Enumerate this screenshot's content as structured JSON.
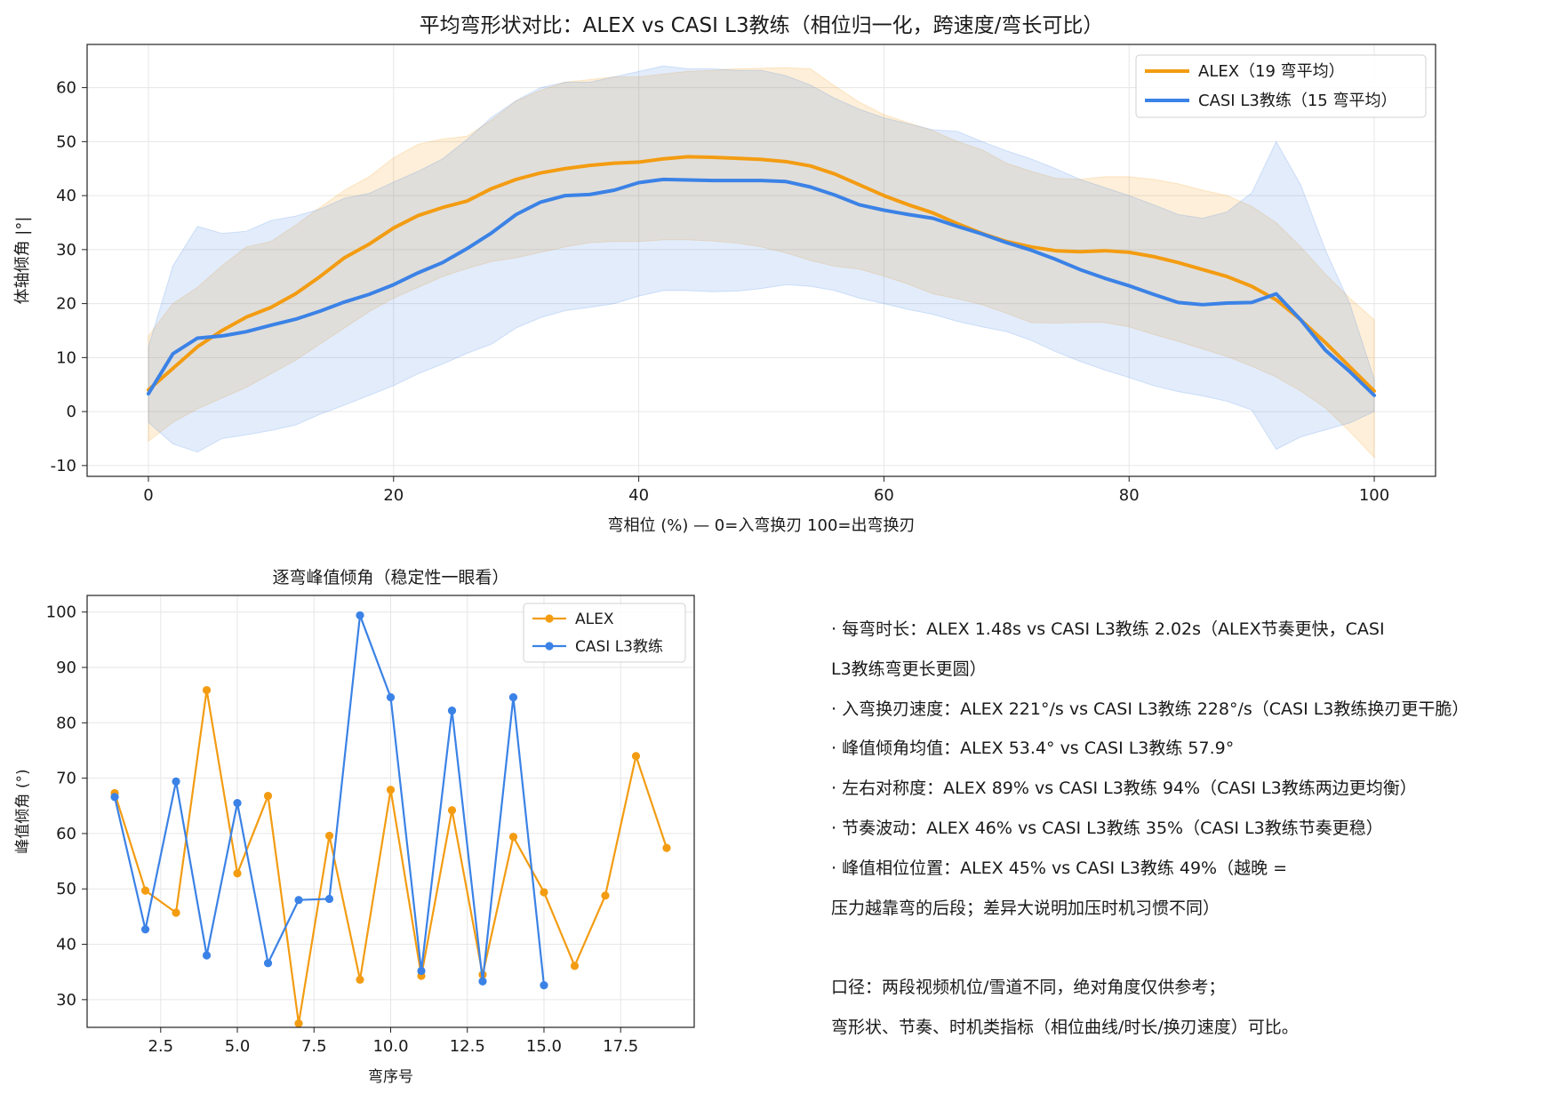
{
  "chart_data": [
    {
      "type": "line",
      "title": "平均弯形状对比：ALEX vs CASI L3教练（相位归一化，跨速度/弯长可比）",
      "xlabel": "弯相位 (%)  —  0=入弯换刃  100=出弯换刃",
      "ylabel": "体轴倾角 |°|",
      "xlim": [
        -5,
        105
      ],
      "ylim": [
        -12,
        68
      ],
      "xticks": [
        0,
        20,
        40,
        60,
        80,
        100
      ],
      "yticks": [
        -10,
        0,
        10,
        20,
        30,
        40,
        50,
        60
      ],
      "grid": true,
      "legend": "top-right",
      "x": [
        0,
        2,
        4,
        6,
        8,
        10,
        12,
        14,
        16,
        18,
        20,
        22,
        24,
        26,
        28,
        30,
        32,
        34,
        36,
        38,
        40,
        42,
        44,
        46,
        48,
        50,
        52,
        54,
        56,
        58,
        60,
        62,
        64,
        66,
        68,
        70,
        72,
        74,
        76,
        78,
        80,
        82,
        84,
        86,
        88,
        90,
        92,
        94,
        96,
        98,
        100
      ],
      "series": [
        {
          "name": "ALEX（19 弯平均）",
          "color": "#f39c12",
          "values": [
            4,
            8,
            12,
            15,
            17.5,
            19.3,
            21.8,
            25,
            28.5,
            31,
            34,
            36.3,
            37.8,
            39,
            41.3,
            43,
            44.2,
            45,
            45.6,
            46,
            46.2,
            46.8,
            47.2,
            47.1,
            46.9,
            46.7,
            46.3,
            45.5,
            44,
            42,
            40,
            38.3,
            36.8,
            34.8,
            33,
            31.5,
            30.5,
            29.8,
            29.6,
            29.8,
            29.5,
            28.7,
            27.6,
            26.3,
            25,
            23.2,
            20.7,
            17,
            12.8,
            8.3,
            3.8
          ],
          "band_upper": [
            14,
            20,
            23,
            27,
            30.5,
            31.5,
            34.5,
            37.8,
            41,
            43.5,
            47,
            49.5,
            50.5,
            51,
            54,
            57.5,
            59.5,
            61,
            61.5,
            62,
            62,
            62.5,
            63,
            63.2,
            63.5,
            63.6,
            63.7,
            63.5,
            60.3,
            57.3,
            55,
            53.5,
            52,
            50,
            48.5,
            46,
            44.5,
            43.2,
            43,
            43.5,
            43.5,
            43,
            42.2,
            41,
            40,
            38,
            35,
            30.5,
            25.5,
            21,
            17
          ],
          "band_lower": [
            -5.5,
            -2,
            0.5,
            2.5,
            4.5,
            7,
            9.5,
            12.5,
            15.5,
            18.5,
            21,
            23,
            25,
            26.5,
            27.8,
            28.5,
            29.5,
            30.5,
            31.3,
            31.5,
            31.5,
            31.8,
            31.8,
            31.6,
            31.2,
            30.5,
            29.4,
            28,
            26.9,
            26.4,
            25.1,
            23.6,
            21.8,
            20.9,
            19.8,
            18.2,
            16.5,
            16.4,
            16.5,
            16.5,
            15.7,
            14.3,
            13,
            11.6,
            10.2,
            8.4,
            6.4,
            3.8,
            0.7,
            -3.7,
            -8.5
          ]
        },
        {
          "name": "CASI L3教练（15 弯平均）",
          "color": "#3b82e6",
          "values": [
            3.3,
            10.7,
            13.6,
            14,
            14.8,
            16,
            17.1,
            18.6,
            20.3,
            21.7,
            23.5,
            25.7,
            27.6,
            30.2,
            33.1,
            36.5,
            38.8,
            40,
            40.2,
            41,
            42.4,
            43,
            42.9,
            42.8,
            42.8,
            42.8,
            42.6,
            41.6,
            40.1,
            38.3,
            37.3,
            36.5,
            35.8,
            34.3,
            32.9,
            31.3,
            29.9,
            28.2,
            26.3,
            24.7,
            23.3,
            21.7,
            20.2,
            19.8,
            20.1,
            20.2,
            21.8,
            17,
            11.4,
            7.4,
            3
          ],
          "band_upper": [
            12,
            27,
            34.3,
            33,
            33.4,
            35.4,
            36.2,
            37.5,
            39.5,
            40.4,
            42.5,
            44.5,
            46.8,
            50.4,
            54.5,
            57.6,
            60,
            61,
            61,
            62,
            63,
            64,
            63.5,
            63.5,
            63.2,
            63.2,
            62.2,
            60.5,
            58,
            56,
            54.4,
            53.3,
            52.2,
            51.9,
            50,
            48.3,
            46.8,
            45,
            43,
            41.5,
            40,
            38.3,
            36.5,
            35.8,
            37,
            40.5,
            50,
            42,
            30,
            20,
            6
          ],
          "band_lower": [
            -2,
            -6,
            -7.5,
            -5,
            -4.3,
            -3.5,
            -2.5,
            -0.5,
            1.2,
            3,
            4.8,
            7,
            8.8,
            10.8,
            12.5,
            15.5,
            17.4,
            18.7,
            19.3,
            20,
            21.4,
            22.4,
            22.4,
            22.2,
            22.3,
            22.8,
            23.5,
            23.2,
            22.4,
            21,
            20,
            18.9,
            18,
            16.7,
            15.7,
            14.8,
            13.2,
            11.1,
            9.3,
            7.7,
            6.3,
            4.8,
            3.7,
            2.9,
            1.9,
            0.3,
            -7,
            -4.7,
            -3.4,
            -2.1,
            0
          ]
        }
      ]
    },
    {
      "type": "line",
      "title": "逐弯峰值倾角（稳定性一眼看）",
      "xlabel": "弯序号",
      "ylabel": "峰值倾角 (°)",
      "xlim": [
        0.1,
        19.9
      ],
      "ylim": [
        25,
        103
      ],
      "xticks": [
        "2.5",
        "5.0",
        "7.5",
        "10.0",
        "12.5",
        "15.0",
        "17.5"
      ],
      "yticks": [
        30,
        40,
        50,
        60,
        70,
        80,
        90,
        100
      ],
      "grid": true,
      "legend": "top-right",
      "series": [
        {
          "name": "ALEX",
          "color": "#f39c12",
          "x": [
            1,
            2,
            3,
            4,
            5,
            6,
            7,
            8,
            9,
            10,
            11,
            12,
            13,
            14,
            15,
            16,
            17,
            18,
            19
          ],
          "values": [
            67.3,
            49.7,
            45.7,
            85.9,
            52.8,
            66.8,
            25.7,
            59.6,
            33.6,
            67.9,
            34.3,
            64.2,
            34.5,
            59.4,
            49.4,
            36.1,
            48.8,
            74,
            57.4
          ]
        },
        {
          "name": "CASI L3教练",
          "color": "#3b82e6",
          "x": [
            1,
            2,
            3,
            4,
            5,
            6,
            7,
            8,
            9,
            10,
            11,
            12,
            13,
            14,
            15
          ],
          "values": [
            66.6,
            42.7,
            69.4,
            38,
            65.5,
            36.6,
            48,
            48.2,
            99.4,
            84.6,
            35.2,
            82.2,
            33.3,
            84.6,
            32.6
          ]
        }
      ]
    }
  ],
  "notes": {
    "lines": [
      "· 每弯时长：ALEX 1.48s vs CASI L3教练 2.02s（ALEX节奏更快，CASI",
      "L3教练弯更长更圆）",
      "· 入弯换刃速度：ALEX 221°/s vs CASI L3教练 228°/s（CASI L3教练换刃更干脆）",
      "· 峰值倾角均值：ALEX 53.4° vs CASI L3教练 57.9°",
      "· 左右对称度：ALEX 89% vs CASI L3教练 94%（CASI L3教练两边更均衡）",
      "· 节奏波动：ALEX 46% vs CASI L3教练 35%（CASI L3教练节奏更稳）",
      "· 峰值相位位置：ALEX 45% vs CASI L3教练 49%（越晚 =",
      "压力越靠弯的后段；差异大说明加压时机习惯不同）",
      "",
      "口径：两段视频机位/雪道不同，绝对角度仅供参考；",
      "弯形状、节奏、时机类指标（相位曲线/时长/换刃速度）可比。"
    ]
  }
}
